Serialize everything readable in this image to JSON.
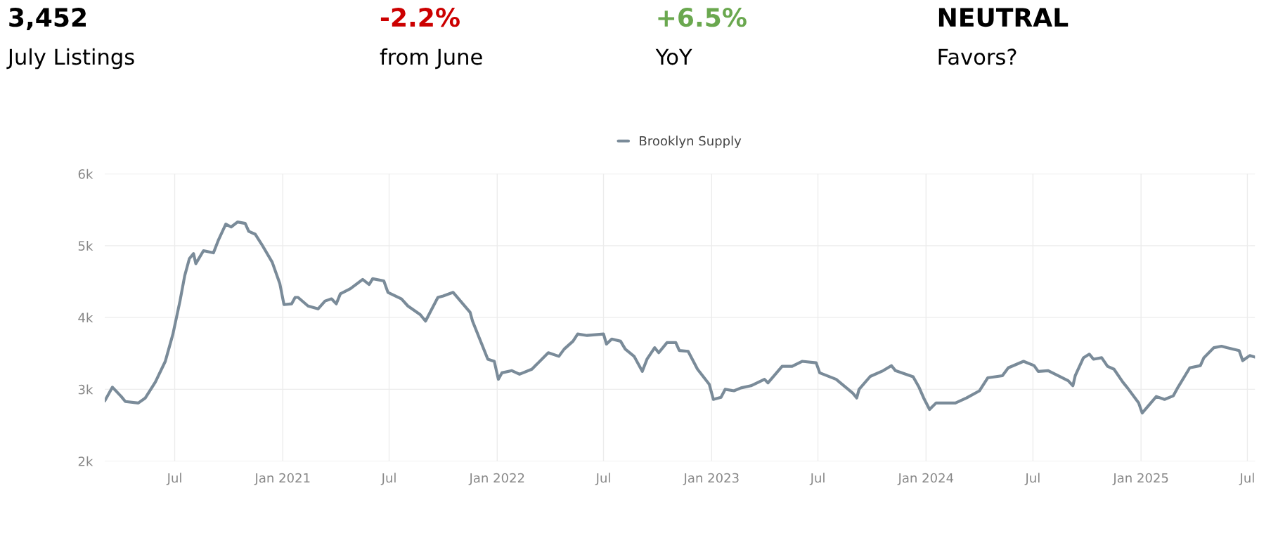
{
  "chart_data": {
    "type": "line",
    "annotations": [
      "3,452",
      "July Listings",
      "-2.2%",
      "from June",
      "+6.5%",
      "YoY",
      "NEUTRAL",
      "Favors?"
    ],
    "x": [
      "2020-03-04",
      "2020-03-17",
      "2020-04-01",
      "2020-04-08",
      "2020-04-30",
      "2020-05-12",
      "2020-05-29",
      "2020-06-15",
      "2020-06-28",
      "2020-07-10",
      "2020-07-18",
      "2020-07-26",
      "2020-08-02",
      "2020-08-06",
      "2020-08-19",
      "2020-09-05",
      "2020-09-13",
      "2020-09-26",
      "2020-10-05",
      "2020-10-16",
      "2020-10-29",
      "2020-11-04",
      "2020-11-15",
      "2020-11-26",
      "2020-12-14",
      "2020-12-27",
      "2021-01-03",
      "2021-01-16",
      "2021-01-22",
      "2021-01-27",
      "2021-02-13",
      "2021-03-02",
      "2021-03-14",
      "2021-03-25",
      "2021-04-02",
      "2021-04-09",
      "2021-04-26",
      "2021-05-17",
      "2021-05-28",
      "2021-06-03",
      "2021-06-22",
      "2021-06-29",
      "2021-07-22",
      "2021-08-02",
      "2021-08-23",
      "2021-09-01",
      "2021-09-22",
      "2021-10-01",
      "2021-10-18",
      "2021-11-16",
      "2021-11-20",
      "2021-12-16",
      "2021-12-27",
      "2022-01-03",
      "2022-01-09",
      "2022-01-26",
      "2022-02-08",
      "2022-03-01",
      "2022-03-29",
      "2022-04-16",
      "2022-04-25",
      "2022-05-10",
      "2022-05-18",
      "2022-06-03",
      "2022-07-01",
      "2022-07-06",
      "2022-07-15",
      "2022-07-30",
      "2022-08-07",
      "2022-08-22",
      "2022-09-05",
      "2022-09-13",
      "2022-09-26",
      "2022-10-03",
      "2022-10-17",
      "2022-11-01",
      "2022-11-07",
      "2022-11-22",
      "2022-12-08",
      "2022-12-28",
      "2023-01-04",
      "2023-01-17",
      "2023-01-24",
      "2023-02-08",
      "2023-02-20",
      "2023-03-09",
      "2023-04-01",
      "2023-04-07",
      "2023-05-01",
      "2023-05-18",
      "2023-06-04",
      "2023-06-28",
      "2023-07-04",
      "2023-08-01",
      "2023-08-29",
      "2023-09-05",
      "2023-09-09",
      "2023-09-28",
      "2023-10-20",
      "2023-11-03",
      "2023-11-10",
      "2023-12-10",
      "2023-12-20",
      "2023-12-28",
      "2024-01-07",
      "2024-01-18",
      "2024-02-20",
      "2024-03-10",
      "2024-04-01",
      "2024-04-15",
      "2024-05-10",
      "2024-05-20",
      "2024-06-15",
      "2024-07-03",
      "2024-07-10",
      "2024-07-27",
      "2024-08-30",
      "2024-09-07",
      "2024-09-11",
      "2024-09-25",
      "2024-10-05",
      "2024-10-12",
      "2024-10-26",
      "2024-11-05",
      "2024-11-16",
      "2024-12-01",
      "2024-12-09",
      "2024-12-28",
      "2025-01-03",
      "2025-01-27",
      "2025-02-10",
      "2025-02-25",
      "2025-03-05",
      "2025-03-25",
      "2025-04-12",
      "2025-04-18",
      "2025-05-05",
      "2025-05-18",
      "2025-05-27",
      "2025-06-17",
      "2025-06-23",
      "2025-07-05",
      "2025-07-14"
    ],
    "series": [
      {
        "name": "Brooklyn Supply",
        "color": "#7a8b99",
        "values": [
          2840,
          3030,
          2900,
          2830,
          2810,
          2880,
          3100,
          3390,
          3770,
          4230,
          4580,
          4820,
          4890,
          4750,
          4930,
          4900,
          5070,
          5300,
          5260,
          5330,
          5310,
          5200,
          5160,
          5020,
          4770,
          4470,
          4180,
          4190,
          4280,
          4280,
          4160,
          4120,
          4230,
          4260,
          4190,
          4330,
          4400,
          4530,
          4460,
          4540,
          4510,
          4350,
          4260,
          4160,
          4040,
          3950,
          4280,
          4300,
          4350,
          4070,
          3950,
          3420,
          3390,
          3140,
          3230,
          3260,
          3210,
          3280,
          3510,
          3460,
          3560,
          3670,
          3770,
          3750,
          3770,
          3630,
          3700,
          3670,
          3560,
          3460,
          3250,
          3420,
          3580,
          3510,
          3650,
          3650,
          3540,
          3530,
          3280,
          3070,
          2860,
          2890,
          3000,
          2980,
          3020,
          3050,
          3140,
          3090,
          3320,
          3320,
          3390,
          3370,
          3230,
          3140,
          2950,
          2880,
          3000,
          3180,
          3260,
          3330,
          3260,
          3175,
          3030,
          2880,
          2720,
          2810,
          2810,
          2880,
          2980,
          3160,
          3190,
          3300,
          3390,
          3330,
          3250,
          3260,
          3120,
          3050,
          3190,
          3440,
          3490,
          3420,
          3440,
          3320,
          3280,
          3100,
          3020,
          2810,
          2670,
          2900,
          2860,
          2910,
          3030,
          3300,
          3330,
          3440,
          3580,
          3600,
          3580,
          3540,
          3400,
          3470,
          3450
        ]
      }
    ],
    "xlim": [
      "2020-03-04",
      "2025-07-14"
    ],
    "xticks": [
      {
        "value": "2020-07-01",
        "label": "Jul"
      },
      {
        "value": "2021-01-01",
        "label": "Jan 2021"
      },
      {
        "value": "2021-07-01",
        "label": "Jul"
      },
      {
        "value": "2022-01-01",
        "label": "Jan 2022"
      },
      {
        "value": "2022-07-01",
        "label": "Jul"
      },
      {
        "value": "2023-01-01",
        "label": "Jan 2023"
      },
      {
        "value": "2023-07-01",
        "label": "Jul"
      },
      {
        "value": "2024-01-01",
        "label": "Jan 2024"
      },
      {
        "value": "2024-07-01",
        "label": "Jul"
      },
      {
        "value": "2025-01-01",
        "label": "Jan 2025"
      },
      {
        "value": "2025-07-01",
        "label": "Jul"
      }
    ],
    "ylim": [
      2000,
      6000
    ],
    "yticks": [
      {
        "value": 2000,
        "label": "2k"
      },
      {
        "value": 3000,
        "label": "3k"
      },
      {
        "value": 4000,
        "label": "4k"
      },
      {
        "value": 5000,
        "label": "5k"
      },
      {
        "value": 6000,
        "label": "6k"
      }
    ],
    "grid": true,
    "legend": "top",
    "marker": "none",
    "line_style": "solid"
  }
}
